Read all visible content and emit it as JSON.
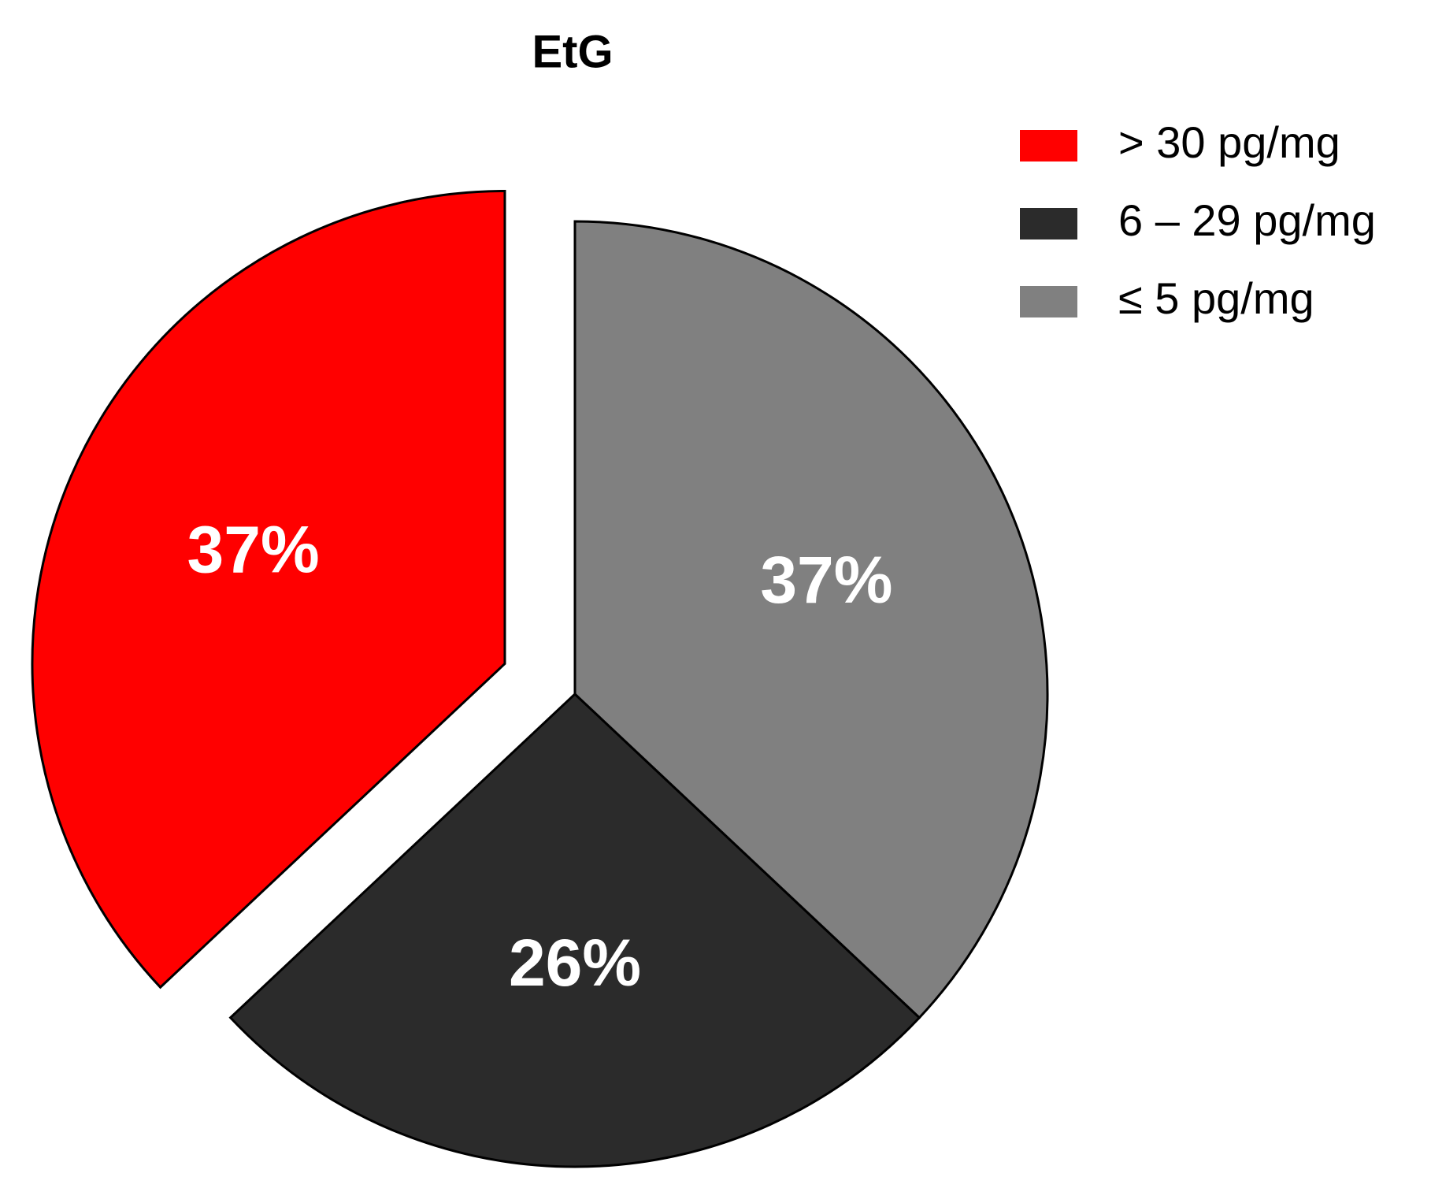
{
  "chart_data": {
    "type": "pie",
    "title": "EtG",
    "categories": [
      "> 30 pg/mg",
      "6 – 29 pg/mg",
      "≤ 5 pg/mg"
    ],
    "values": [
      37,
      26,
      37
    ],
    "value_labels": [
      "37%",
      "26%",
      "37%"
    ],
    "colors": [
      "#ff0000",
      "#2b2b2b",
      "#808080"
    ],
    "legend": "upper right"
  }
}
